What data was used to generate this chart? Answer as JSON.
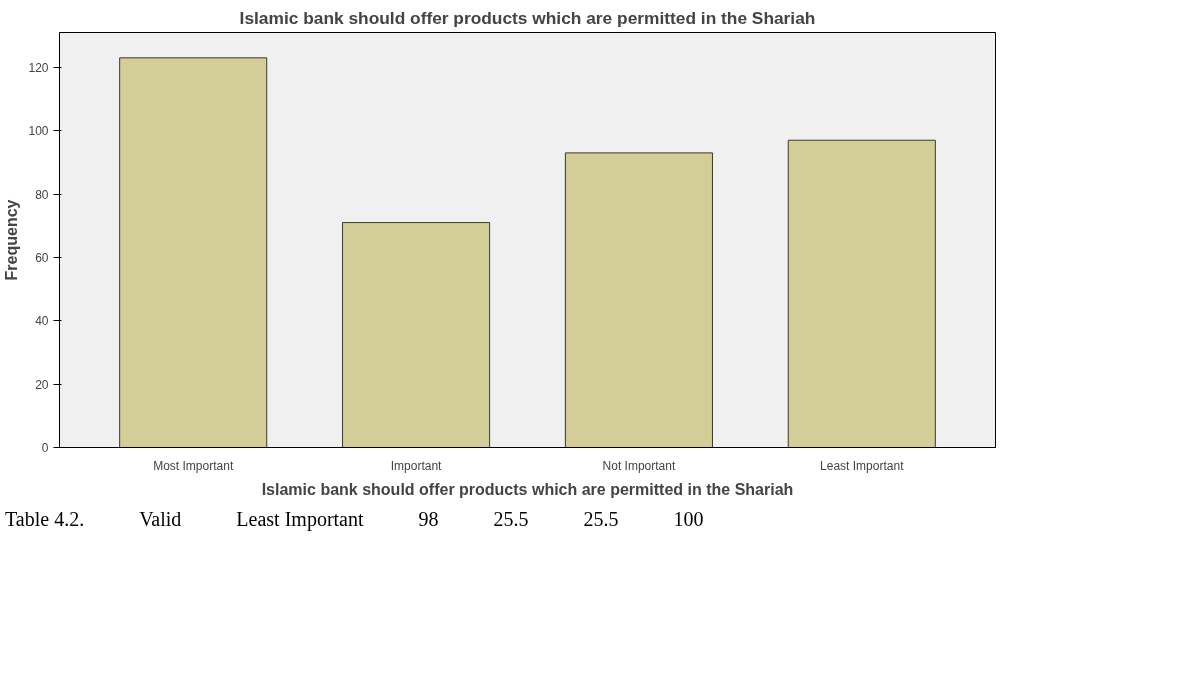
{
  "chart_data": {
    "type": "bar",
    "title": "Islamic bank should offer products which are permitted in the Shariah",
    "xlabel": "Islamic bank should offer products which are permitted in the Shariah",
    "ylabel": "Frequency",
    "categories": [
      "Most Important",
      "Important",
      "Not Important",
      "Least Important"
    ],
    "values": [
      123,
      71,
      93,
      97
    ],
    "color": "#d3ce98",
    "ylim": [
      0,
      131
    ],
    "yticks": [
      0,
      20,
      40,
      60,
      80,
      100,
      120
    ],
    "grid": false,
    "annotations": [
      "Table 4.2.",
      "Valid",
      "Least Important",
      "98",
      "25.5",
      "25.5",
      "100"
    ]
  }
}
